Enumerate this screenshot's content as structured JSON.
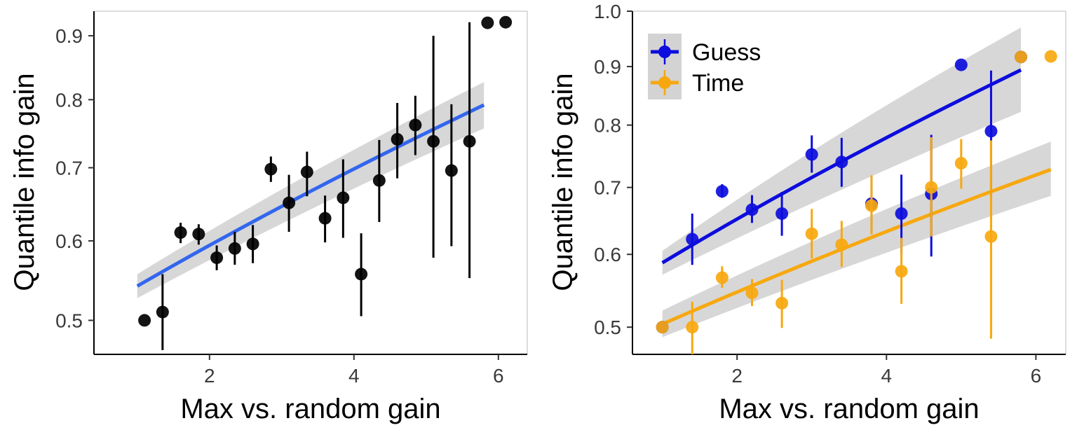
{
  "chart_data": [
    {
      "type": "scatter",
      "xlabel": "Max vs. random gain",
      "ylabel": "Quantile info gain",
      "xlim": [
        0.4,
        6.4
      ],
      "ylim": [
        0.46,
        0.94
      ],
      "y_scale": "sqrt",
      "x_ticks": [
        "2",
        "4",
        "6"
      ],
      "y_ticks": [
        "0.5",
        "0.6",
        "0.7",
        "0.8",
        "0.9"
      ],
      "grid": false,
      "series": [
        {
          "color": "#000000",
          "points": [
            {
              "x": 1.1,
              "y": 0.5,
              "lo": null,
              "hi": null
            },
            {
              "x": 1.35,
              "y": 0.51,
              "lo": 0.465,
              "hi": 0.557
            },
            {
              "x": 1.6,
              "y": 0.611,
              "lo": 0.597,
              "hi": 0.624
            },
            {
              "x": 1.85,
              "y": 0.609,
              "lo": 0.595,
              "hi": 0.622
            },
            {
              "x": 2.1,
              "y": 0.578,
              "lo": 0.562,
              "hi": 0.594
            },
            {
              "x": 2.35,
              "y": 0.59,
              "lo": 0.569,
              "hi": 0.612
            },
            {
              "x": 2.6,
              "y": 0.596,
              "lo": 0.571,
              "hi": 0.621
            },
            {
              "x": 2.85,
              "y": 0.698,
              "lo": 0.68,
              "hi": 0.716
            },
            {
              "x": 3.1,
              "y": 0.651,
              "lo": 0.612,
              "hi": 0.69
            },
            {
              "x": 3.35,
              "y": 0.694,
              "lo": 0.66,
              "hi": 0.723
            },
            {
              "x": 3.6,
              "y": 0.63,
              "lo": 0.598,
              "hi": 0.661
            },
            {
              "x": 3.85,
              "y": 0.658,
              "lo": 0.604,
              "hi": 0.712
            },
            {
              "x": 4.1,
              "y": 0.557,
              "lo": 0.505,
              "hi": 0.61
            },
            {
              "x": 4.35,
              "y": 0.682,
              "lo": 0.625,
              "hi": 0.74
            },
            {
              "x": 4.6,
              "y": 0.741,
              "lo": 0.685,
              "hi": 0.795
            },
            {
              "x": 4.85,
              "y": 0.762,
              "lo": 0.718,
              "hi": 0.806
            },
            {
              "x": 5.1,
              "y": 0.738,
              "lo": 0.578,
              "hi": 0.9
            },
            {
              "x": 5.35,
              "y": 0.696,
              "lo": 0.593,
              "hi": 0.793
            },
            {
              "x": 5.6,
              "y": 0.738,
              "lo": 0.552,
              "hi": 0.922
            },
            {
              "x": 5.85,
              "y": 0.921,
              "lo": null,
              "hi": null
            },
            {
              "x": 6.1,
              "y": 0.922,
              "lo": null,
              "hi": null
            }
          ],
          "fit": {
            "color": "#3366ee",
            "x0": 1.0,
            "x1": 5.8,
            "y0": 0.542,
            "y1": 0.792,
            "band_lo0": 0.527,
            "band_hi0": 0.557,
            "band_lo1": 0.757,
            "band_hi1": 0.827
          }
        }
      ]
    },
    {
      "type": "scatter",
      "xlabel": "Max vs. random gain",
      "ylabel": "Quantile info gain",
      "xlim": [
        0.6,
        6.4
      ],
      "ylim": [
        0.465,
        1.0
      ],
      "y_scale": "sqrt",
      "x_ticks": [
        "2",
        "4",
        "6"
      ],
      "y_ticks": [
        "0.5",
        "0.6",
        "0.7",
        "0.8",
        "0.9",
        "1.0"
      ],
      "grid": false,
      "legend": {
        "position": "top-left"
      },
      "series": [
        {
          "name": "Guess",
          "color": "#0d0ddd",
          "points": [
            {
              "x": 1.0,
              "y": 0.5,
              "lo": null,
              "hi": null
            },
            {
              "x": 1.4,
              "y": 0.622,
              "lo": 0.585,
              "hi": 0.66
            },
            {
              "x": 1.8,
              "y": 0.694,
              "lo": 0.684,
              "hi": 0.705
            },
            {
              "x": 2.2,
              "y": 0.666,
              "lo": 0.646,
              "hi": 0.688
            },
            {
              "x": 2.6,
              "y": 0.66,
              "lo": 0.627,
              "hi": 0.693
            },
            {
              "x": 3.0,
              "y": 0.752,
              "lo": 0.723,
              "hi": 0.783
            },
            {
              "x": 3.4,
              "y": 0.74,
              "lo": 0.701,
              "hi": 0.779
            },
            {
              "x": 3.8,
              "y": 0.675,
              "lo": 0.634,
              "hi": 0.717
            },
            {
              "x": 4.2,
              "y": 0.66,
              "lo": 0.6,
              "hi": 0.72
            },
            {
              "x": 4.6,
              "y": 0.69,
              "lo": 0.597,
              "hi": 0.784
            },
            {
              "x": 5.0,
              "y": 0.903,
              "lo": null,
              "hi": null
            },
            {
              "x": 5.4,
              "y": 0.79,
              "lo": 0.685,
              "hi": 0.893
            },
            {
              "x": 5.8,
              "y": 0.917,
              "lo": null,
              "hi": null
            }
          ],
          "fit": {
            "color": "#0d0ddd",
            "x0": 1.0,
            "x1": 5.8,
            "y0": 0.588,
            "y1": 0.894,
            "band_lo0": 0.571,
            "band_hi0": 0.605,
            "band_lo1": 0.822,
            "band_hi1": 0.97
          }
        },
        {
          "name": "Time",
          "color": "#f7a80f",
          "points": [
            {
              "x": 1.0,
              "y": 0.5,
              "lo": null,
              "hi": null
            },
            {
              "x": 1.4,
              "y": 0.5,
              "lo": 0.465,
              "hi": 0.534
            },
            {
              "x": 1.8,
              "y": 0.567,
              "lo": 0.553,
              "hi": 0.583
            },
            {
              "x": 2.2,
              "y": 0.546,
              "lo": 0.528,
              "hi": 0.565
            },
            {
              "x": 2.6,
              "y": 0.532,
              "lo": 0.499,
              "hi": 0.564
            },
            {
              "x": 3.0,
              "y": 0.63,
              "lo": 0.594,
              "hi": 0.667
            },
            {
              "x": 3.4,
              "y": 0.614,
              "lo": 0.582,
              "hi": 0.649
            },
            {
              "x": 3.8,
              "y": 0.672,
              "lo": 0.629,
              "hi": 0.719
            },
            {
              "x": 4.2,
              "y": 0.576,
              "lo": 0.531,
              "hi": 0.624
            },
            {
              "x": 4.6,
              "y": 0.7,
              "lo": 0.626,
              "hi": 0.78
            },
            {
              "x": 5.0,
              "y": 0.738,
              "lo": 0.698,
              "hi": 0.777
            },
            {
              "x": 5.4,
              "y": 0.626,
              "lo": 0.485,
              "hi": 0.775
            },
            {
              "x": 5.8,
              "y": 0.917,
              "lo": null,
              "hi": null
            },
            {
              "x": 6.2,
              "y": 0.918,
              "lo": null,
              "hi": null
            }
          ],
          "fit": {
            "color": "#f7a80f",
            "x0": 1.0,
            "x1": 6.2,
            "y0": 0.504,
            "y1": 0.728,
            "band_lo0": 0.487,
            "band_hi0": 0.522,
            "band_lo1": 0.687,
            "band_hi1": 0.773
          }
        }
      ]
    }
  ],
  "colors": {
    "band": "#d3d3d3",
    "axis": "#000000",
    "frame": "#b8b8b8",
    "tick_text": "#3a3a3a"
  }
}
